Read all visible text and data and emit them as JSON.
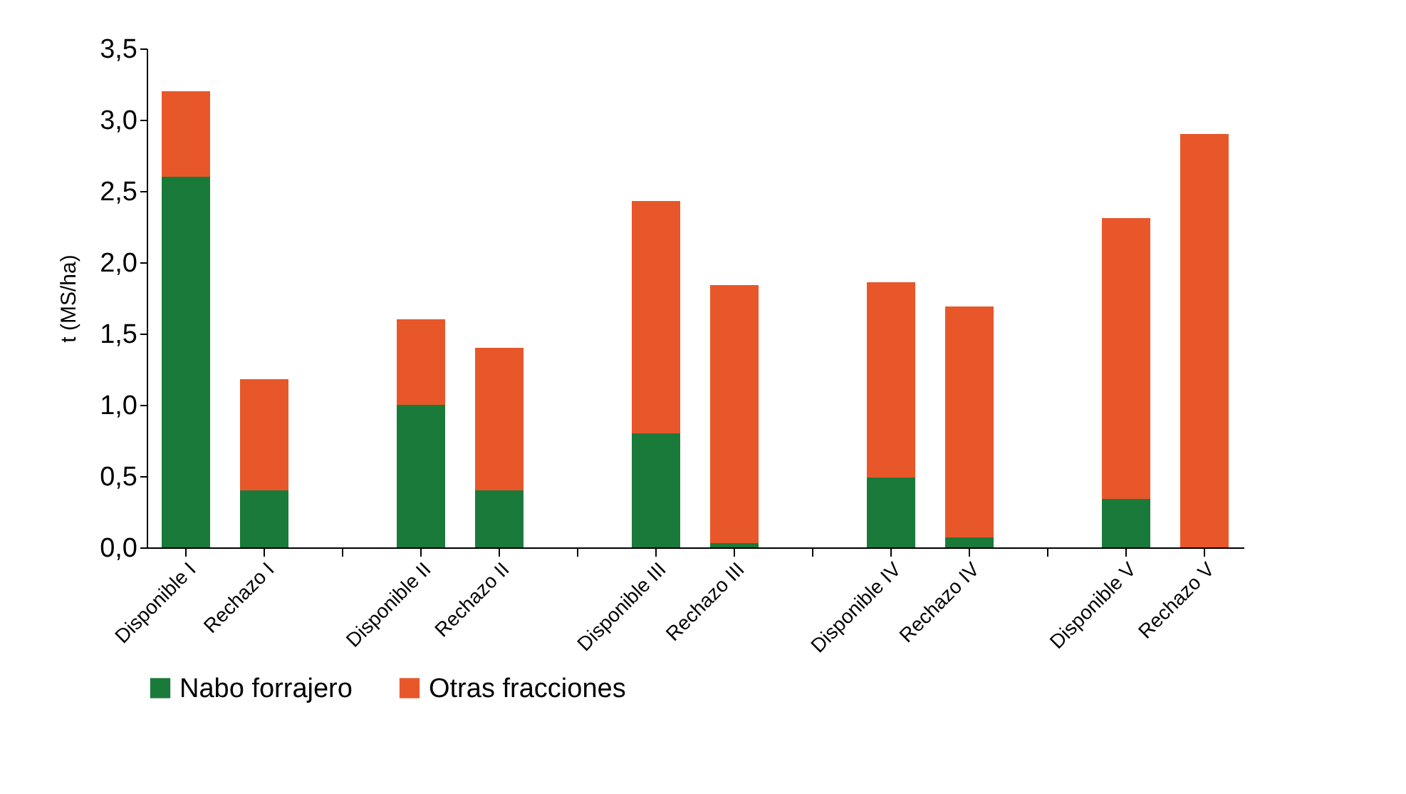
{
  "chart_data": {
    "type": "bar",
    "stacked": true,
    "ylabel": "t (MS/ha)",
    "categories": [
      "Disponible I",
      "Rechazo I",
      null,
      "Disponible II",
      "Rechazo II",
      null,
      "Disponible III",
      "Rechazo III",
      null,
      "Disponible IV",
      "Rechazo IV",
      null,
      "Disponible V",
      "Rechazo V"
    ],
    "series": [
      {
        "name": "Nabo forrajero",
        "color": "#1a7a3a",
        "values": [
          2.6,
          0.4,
          null,
          1.0,
          0.4,
          null,
          0.8,
          0.03,
          null,
          0.49,
          0.07,
          null,
          0.34,
          0
        ]
      },
      {
        "name": "Otras fracciones",
        "color": "#e8572a",
        "values": [
          0.6,
          0.78,
          null,
          0.6,
          1.0,
          null,
          1.63,
          1.81,
          null,
          1.37,
          1.62,
          null,
          1.97,
          2.9
        ]
      }
    ],
    "ylim": [
      0,
      3.5
    ],
    "yticks": [
      {
        "value": 0,
        "label": "0,0"
      },
      {
        "value": 0.5,
        "label": "0,5"
      },
      {
        "value": 1,
        "label": "1,0"
      },
      {
        "value": 1.5,
        "label": "1,5"
      },
      {
        "value": 2,
        "label": "2,0"
      },
      {
        "value": 2.5,
        "label": "2,5"
      },
      {
        "value": 3,
        "label": "3,0"
      },
      {
        "value": 3.5,
        "label": "3,5"
      }
    ],
    "grid": false,
    "legend": "bottom"
  }
}
